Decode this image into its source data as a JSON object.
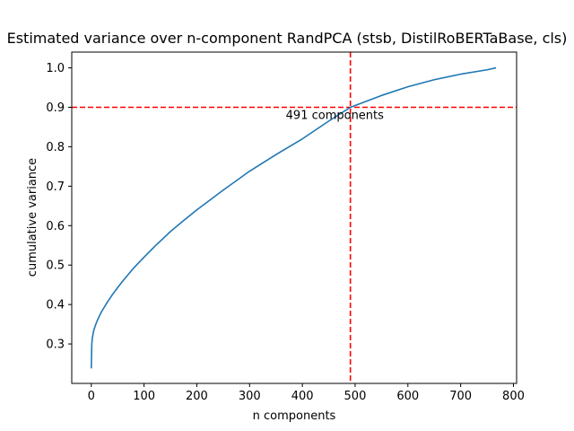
{
  "chart_data": {
    "type": "line",
    "title": "Estimated variance over n-component RandPCA (stsb, DistilRoBERTaBase, cls)",
    "xlabel": "n components",
    "ylabel": "cumulative variance",
    "xlim": [
      -37,
      806
    ],
    "ylim": [
      0.2,
      1.04
    ],
    "xticks": [
      0,
      100,
      200,
      300,
      400,
      500,
      600,
      700,
      800
    ],
    "yticks": [
      0.3,
      0.4,
      0.5,
      0.6,
      0.7,
      0.8,
      0.9,
      1.0
    ],
    "ytick_labels": [
      "0.3",
      "0.4",
      "0.5",
      "0.6",
      "0.7",
      "0.8",
      "0.9",
      "1.0"
    ],
    "grid": false,
    "series": [
      {
        "color": "#1f77b4",
        "x": [
          0,
          1,
          2,
          4,
          6,
          10,
          15,
          20,
          30,
          40,
          50,
          60,
          80,
          100,
          120,
          150,
          175,
          200,
          250,
          300,
          350,
          400,
          450,
          491,
          550,
          600,
          650,
          700,
          750,
          767
        ],
        "y": [
          0.238,
          0.3,
          0.315,
          0.33,
          0.34,
          0.355,
          0.37,
          0.383,
          0.405,
          0.425,
          0.443,
          0.46,
          0.492,
          0.52,
          0.547,
          0.585,
          0.613,
          0.64,
          0.69,
          0.738,
          0.78,
          0.82,
          0.865,
          0.9,
          0.93,
          0.952,
          0.97,
          0.984,
          0.995,
          1.0
        ]
      }
    ],
    "reference_lines": {
      "color": "#ff0000",
      "vertical_x": 491,
      "horizontal_y": 0.9
    },
    "annotation": {
      "text": "491 components",
      "x": 491,
      "y": 0.9
    }
  }
}
